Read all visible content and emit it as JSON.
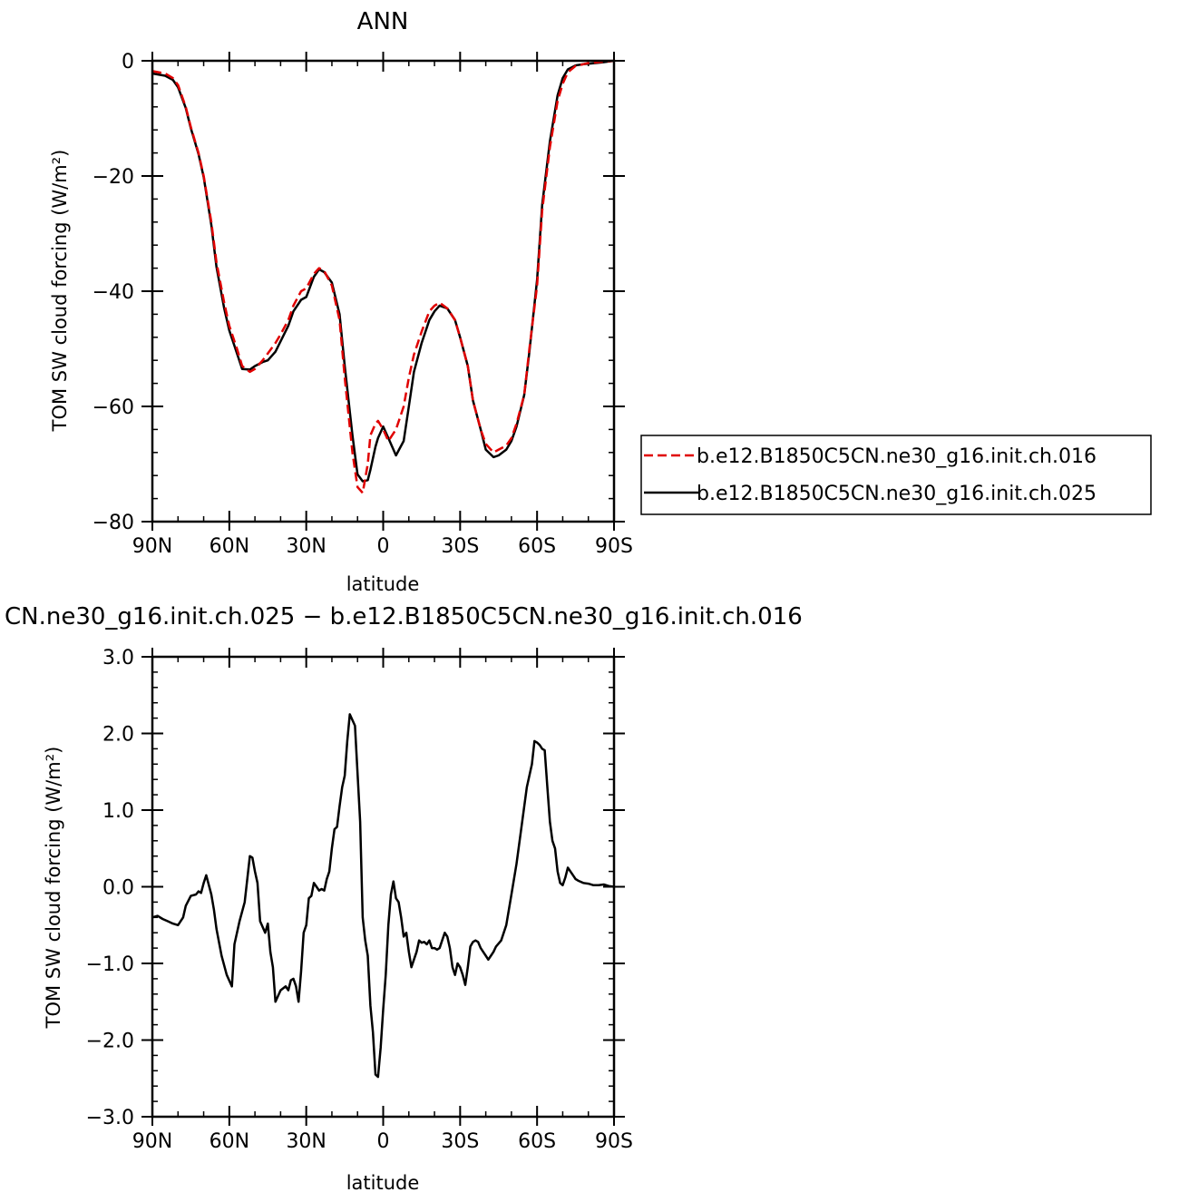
{
  "chart_data": [
    {
      "type": "line",
      "title": "ANN",
      "xlabel": "latitude",
      "ylabel": "TOM SW cloud forcing (W/m²)",
      "xlim": [
        90,
        -90
      ],
      "ylim": [
        -80,
        0
      ],
      "xticks": [
        90,
        60,
        30,
        0,
        -30,
        -60,
        -90
      ],
      "xtick_labels": [
        "90N",
        "60N",
        "30N",
        "0",
        "30S",
        "60S",
        "90S"
      ],
      "yticks": [
        0,
        -20,
        -40,
        -60,
        -80
      ],
      "ytick_labels": [
        "0",
        "−20",
        "−40",
        "−60",
        "−80"
      ],
      "legend": "right",
      "series": [
        {
          "name": "b.e12.B1850C5CN.ne30_g16.init.ch.016",
          "color": "#e00000",
          "dash": true,
          "x": [
            90,
            85,
            82,
            80,
            77,
            75,
            72,
            70,
            67,
            65,
            62,
            60,
            57,
            55,
            52,
            50,
            47,
            45,
            42,
            40,
            37,
            35,
            32,
            30,
            27,
            25,
            23,
            20,
            17,
            15,
            12,
            10,
            8,
            6,
            5,
            3,
            2,
            0,
            -2,
            -5,
            -8,
            -10,
            -12,
            -15,
            -18,
            -20,
            -22,
            -25,
            -28,
            -30,
            -33,
            -35,
            -38,
            -40,
            -43,
            -45,
            -48,
            -50,
            -52,
            -55,
            -57,
            -60,
            -62,
            -65,
            -68,
            -70,
            -72,
            -75,
            -78,
            -80,
            -85,
            -90
          ],
          "y": [
            -1.8,
            -2.2,
            -3,
            -4.2,
            -8,
            -11.5,
            -16,
            -20,
            -28,
            -35,
            -42,
            -46,
            -50,
            -53,
            -54,
            -53.5,
            -52,
            -50.8,
            -49,
            -47.5,
            -45,
            -42.5,
            -40,
            -39.5,
            -37,
            -36,
            -36.5,
            -39,
            -45,
            -55,
            -68,
            -74,
            -75,
            -70,
            -65,
            -63,
            -62.5,
            -64,
            -66,
            -64,
            -60,
            -55,
            -51,
            -47,
            -43.5,
            -42.5,
            -42,
            -43,
            -45,
            -48,
            -53,
            -59,
            -64,
            -66.5,
            -68,
            -67.5,
            -66.8,
            -65.5,
            -63,
            -58,
            -50,
            -39,
            -26,
            -15,
            -7,
            -4,
            -2,
            -0.9,
            -0.6,
            -0.4,
            -0.2,
            0
          ]
        },
        {
          "name": "b.e12.B1850C5CN.ne30_g16.init.ch.025",
          "color": "#000000",
          "dash": false,
          "x": [
            90,
            85,
            82,
            80,
            77,
            75,
            72,
            70,
            67,
            65,
            62,
            60,
            57,
            55,
            52,
            50,
            47,
            45,
            42,
            40,
            37,
            35,
            32,
            30,
            27,
            25,
            23,
            20,
            17,
            15,
            12,
            10,
            8,
            6,
            5,
            3,
            2,
            0,
            -2,
            -5,
            -8,
            -10,
            -12,
            -15,
            -18,
            -20,
            -22,
            -25,
            -28,
            -30,
            -33,
            -35,
            -38,
            -40,
            -43,
            -45,
            -48,
            -50,
            -52,
            -55,
            -57,
            -60,
            -62,
            -65,
            -68,
            -70,
            -72,
            -75,
            -78,
            -80,
            -85,
            -90
          ],
          "y": [
            -2.2,
            -2.6,
            -3.3,
            -4.6,
            -8.2,
            -11.7,
            -16.2,
            -20.2,
            -28.5,
            -35.8,
            -43,
            -46.8,
            -50.8,
            -53.5,
            -53.6,
            -53,
            -52.3,
            -52,
            -50.5,
            -48.7,
            -46,
            -43.5,
            -41.5,
            -41,
            -37.5,
            -36.2,
            -36.7,
            -38.5,
            -44,
            -53,
            -65,
            -71.8,
            -73,
            -72.8,
            -71,
            -67,
            -65.5,
            -63.5,
            -65.5,
            -68.5,
            -66,
            -60,
            -54,
            -49,
            -45,
            -43.5,
            -42.5,
            -43,
            -45,
            -48,
            -53,
            -59,
            -64,
            -67.5,
            -68.8,
            -68.5,
            -67.5,
            -66,
            -63.5,
            -58,
            -50.5,
            -38,
            -25,
            -14,
            -6,
            -3,
            -1.5,
            -0.8,
            -0.6,
            -0.5,
            -0.3,
            0
          ]
        }
      ]
    },
    {
      "type": "line",
      "title": "CN.ne30_g16.init.ch.025 − b.e12.B1850C5CN.ne30_g16.init.ch.016",
      "xlabel": "latitude",
      "ylabel": "TOM SW cloud forcing (W/m²)",
      "xlim": [
        90,
        -90
      ],
      "ylim": [
        -3,
        3
      ],
      "xticks": [
        90,
        60,
        30,
        0,
        -30,
        -60,
        -90
      ],
      "xtick_labels": [
        "90N",
        "60N",
        "30N",
        "0",
        "30S",
        "60S",
        "90S"
      ],
      "yticks": [
        3,
        2,
        1,
        0,
        -1,
        -2,
        -3
      ],
      "ytick_labels": [
        "3.0",
        "2.0",
        "1.0",
        "0.0",
        "−1.0",
        "−2.0",
        "−3.0"
      ],
      "series": [
        {
          "color": "#000000",
          "dash": false,
          "x": [
            90,
            88,
            86,
            84,
            82,
            80,
            78,
            77,
            75,
            73,
            72,
            71,
            70,
            69,
            67,
            66,
            65,
            63,
            61,
            59,
            58,
            56,
            54,
            52,
            51,
            50,
            49,
            48,
            46,
            45,
            44,
            43,
            42,
            40,
            38,
            37,
            36,
            35,
            34,
            33,
            32,
            31,
            30,
            29,
            28,
            27,
            26,
            25,
            24,
            23,
            22,
            21,
            20,
            19,
            18,
            17,
            16,
            15,
            14,
            13,
            11,
            9,
            8,
            7,
            6,
            5,
            4,
            3,
            2,
            1,
            0,
            -1,
            -2,
            -3,
            -4,
            -5,
            -6,
            -7,
            -8,
            -9,
            -10,
            -11,
            -12,
            -13,
            -14,
            -15,
            -16,
            -17,
            -18,
            -19,
            -20,
            -21,
            -22,
            -23,
            -24,
            -25,
            -26,
            -27,
            -28,
            -29,
            -30,
            -31,
            -32,
            -33,
            -34,
            -35,
            -36,
            -37,
            -38,
            -39,
            -40,
            -41,
            -42,
            -43,
            -44,
            -46,
            -48,
            -50,
            -52,
            -54,
            -56,
            -58,
            -59,
            -60,
            -61,
            -62,
            -63,
            -64,
            -65,
            -66,
            -67,
            -68,
            -69,
            -70,
            -71,
            -72,
            -73,
            -74,
            -75,
            -76,
            -78,
            -80,
            -82,
            -84,
            -86,
            -88,
            -90
          ],
          "y": [
            -0.4,
            -0.38,
            -0.42,
            -0.45,
            -0.48,
            -0.5,
            -0.4,
            -0.25,
            -0.12,
            -0.1,
            -0.06,
            -0.08,
            0.05,
            0.15,
            -0.1,
            -0.3,
            -0.55,
            -0.9,
            -1.15,
            -1.3,
            -0.75,
            -0.45,
            -0.2,
            0.4,
            0.38,
            0.2,
            0.05,
            -0.45,
            -0.6,
            -0.48,
            -0.85,
            -1.05,
            -1.5,
            -1.35,
            -1.3,
            -1.35,
            -1.22,
            -1.2,
            -1.3,
            -1.5,
            -1.1,
            -0.6,
            -0.5,
            -0.15,
            -0.12,
            0.05,
            0.0,
            -0.05,
            -0.03,
            -0.05,
            0.1,
            0.2,
            0.5,
            0.75,
            0.78,
            1.05,
            1.3,
            1.45,
            1.9,
            2.25,
            2.1,
            0.85,
            -0.4,
            -0.7,
            -0.9,
            -1.55,
            -1.9,
            -2.45,
            -2.48,
            -2.1,
            -1.6,
            -1.15,
            -0.5,
            -0.1,
            0.07,
            -0.15,
            -0.2,
            -0.4,
            -0.65,
            -0.6,
            -0.85,
            -1.05,
            -0.95,
            -0.85,
            -0.7,
            -0.73,
            -0.72,
            -0.75,
            -0.7,
            -0.8,
            -0.8,
            -0.82,
            -0.8,
            -0.7,
            -0.6,
            -0.65,
            -0.8,
            -1.05,
            -1.15,
            -1.0,
            -1.05,
            -1.15,
            -1.28,
            -1.05,
            -0.78,
            -0.72,
            -0.7,
            -0.72,
            -0.8,
            -0.85,
            -0.9,
            -0.95,
            -0.9,
            -0.85,
            -0.78,
            -0.7,
            -0.5,
            -0.1,
            0.3,
            0.8,
            1.3,
            1.6,
            1.9,
            1.88,
            1.85,
            1.8,
            1.78,
            1.3,
            0.85,
            0.6,
            0.5,
            0.2,
            0.05,
            0.02,
            0.12,
            0.25,
            0.2,
            0.15,
            0.1,
            0.08,
            0.05,
            0.04,
            0.02,
            0.02,
            0.03,
            0.01,
            0.0
          ]
        }
      ]
    }
  ]
}
